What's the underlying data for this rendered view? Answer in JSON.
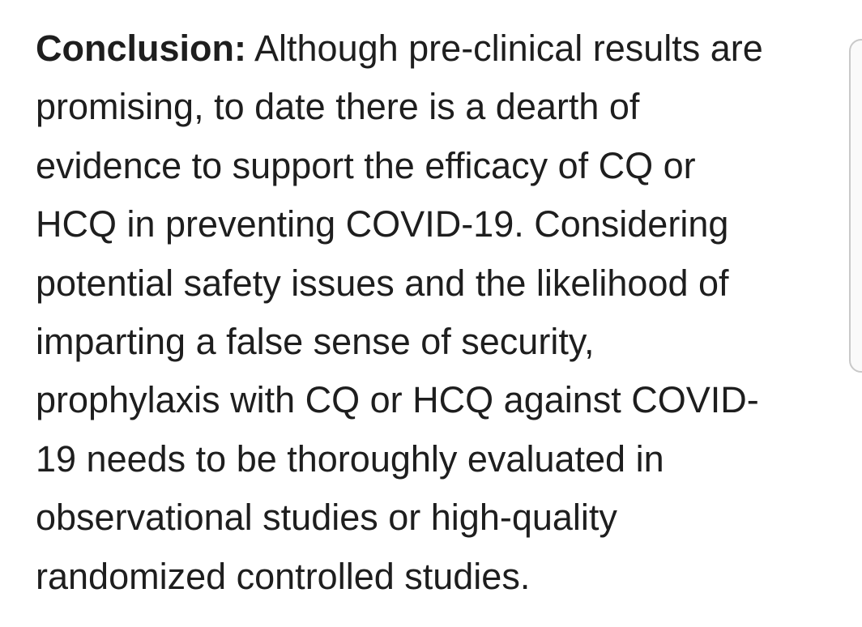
{
  "paragraph": {
    "label": "Conclusion:",
    "lines": [
      " Although pre-clinical results are",
      "promising, to date there is a dearth of",
      "evidence to support the efficacy of CQ or",
      "HCQ in preventing COVID-19. Considering",
      "potential safety issues and the likelihood of",
      "imparting a false sense of security,",
      "prophylaxis with CQ or HCQ against COVID-",
      "19 needs to be thoroughly evaluated in",
      "observational studies or high-quality",
      "randomized controlled studies."
    ]
  }
}
